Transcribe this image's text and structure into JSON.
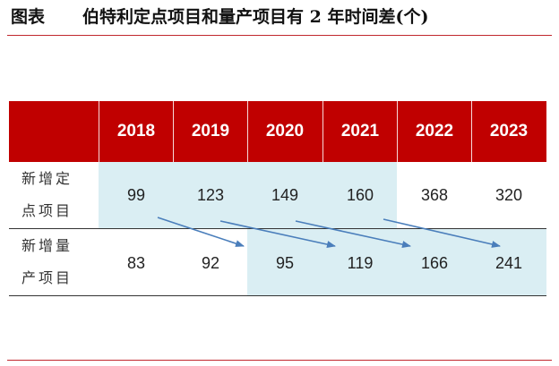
{
  "title": {
    "figure_label": "图表",
    "text": "伯特利定点项目和量产项目有 2 年时间差(个)"
  },
  "table": {
    "years": [
      "2018",
      "2019",
      "2020",
      "2021",
      "2022",
      "2023"
    ],
    "rows": [
      {
        "label_line1": "新增定",
        "label_line2": "点项目",
        "values": [
          "99",
          "123",
          "149",
          "160",
          "368",
          "320"
        ]
      },
      {
        "label_line1": "新增量",
        "label_line2": "产项目",
        "values": [
          "83",
          "92",
          "95",
          "119",
          "166",
          "241"
        ]
      }
    ]
  },
  "colors": {
    "header": "#c00000",
    "highlight": "#daeef3",
    "arrow": "#4a7ebb",
    "rule": "#c1272d"
  }
}
